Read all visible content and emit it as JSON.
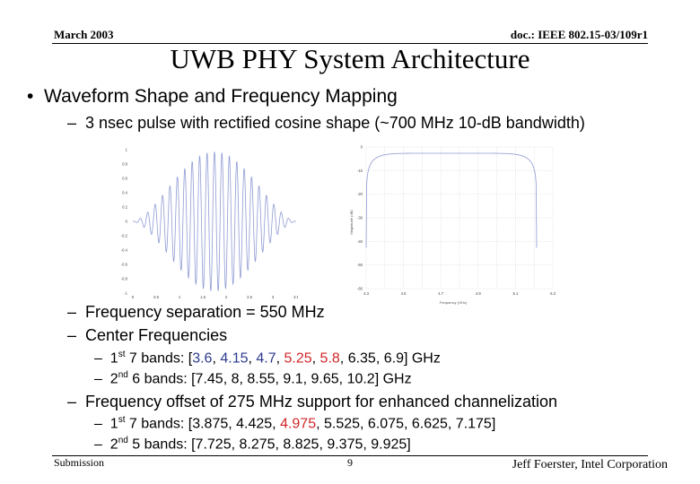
{
  "header": {
    "date": "March 2003",
    "doc_id": "doc.: IEEE 802.15-03/109r1"
  },
  "title": "UWB PHY System Architecture",
  "bullets": {
    "main": "Waveform Shape and Frequency Mapping",
    "pulse": "3 nsec pulse with rectified cosine shape (~700 MHz 10-dB bandwidth)",
    "freq_sep": "Frequency separation = 550 MHz",
    "center_freqs": "Center Frequencies",
    "band7_prefix": "1",
    "band7_sup": "st",
    "band7_label": " 7 bands: [",
    "band7_values": [
      {
        "text": "3.6",
        "color": "blue"
      },
      {
        "text": ", ",
        "color": "black"
      },
      {
        "text": "4.15",
        "color": "blue"
      },
      {
        "text": ", ",
        "color": "black"
      },
      {
        "text": "4.7",
        "color": "blue"
      },
      {
        "text": ", ",
        "color": "black"
      },
      {
        "text": "5.25",
        "color": "red"
      },
      {
        "text": ", ",
        "color": "black"
      },
      {
        "text": "5.8",
        "color": "red"
      },
      {
        "text": ", 6.35, 6.9] GHz",
        "color": "black"
      }
    ],
    "band6_prefix": "2",
    "band6_sup": "nd",
    "band6_rest": " 6 bands: [7.45, 8, 8.55, 9.1, 9.65, 10.2] GHz",
    "offset": "Frequency offset of 275 MHz support for enhanced channelization",
    "off7_prefix": "1",
    "off7_sup": "st",
    "off7_a": " 7 bands: [3.875, 4.425, ",
    "off7_red": "4.975",
    "off7_b": ", 5.525, 6.075, 6.625, 7.175]",
    "off5_prefix": "2",
    "off5_sup": "nd",
    "off5_rest": " 5 bands: [7.725, 8.275, 8.825, 9.375, 9.925]",
    "dash": "–",
    "bullet": "•"
  },
  "figures": {
    "waveform": {
      "yticks": [
        "1",
        "0.8",
        "0.6",
        "0.4",
        "0.2",
        "0",
        "-0.2",
        "-0.4",
        "-0.6",
        "-0.8",
        "-1"
      ],
      "xticks": [
        "0",
        "0.5",
        "1",
        "1.5",
        "2",
        "2.5",
        "3",
        "3.5"
      ],
      "line_color": "#8f9bd4"
    },
    "spectrum": {
      "yticks": [
        "0",
        "-10",
        "-20",
        "-30",
        "-40",
        "-50",
        "-60"
      ],
      "xticks": [
        "4.3",
        "4.5",
        "4.7",
        "4.9",
        "5.1",
        "5.3"
      ],
      "xlabel": "Frequency (GHz)",
      "ylabel": "Magnitude (dB)",
      "line_color": "#8f9bd4",
      "grid_color": "#c8c8c8"
    }
  },
  "footer": {
    "left": "Submission",
    "page": "9",
    "right": "Jeff Foerster, Intel Corporation"
  }
}
